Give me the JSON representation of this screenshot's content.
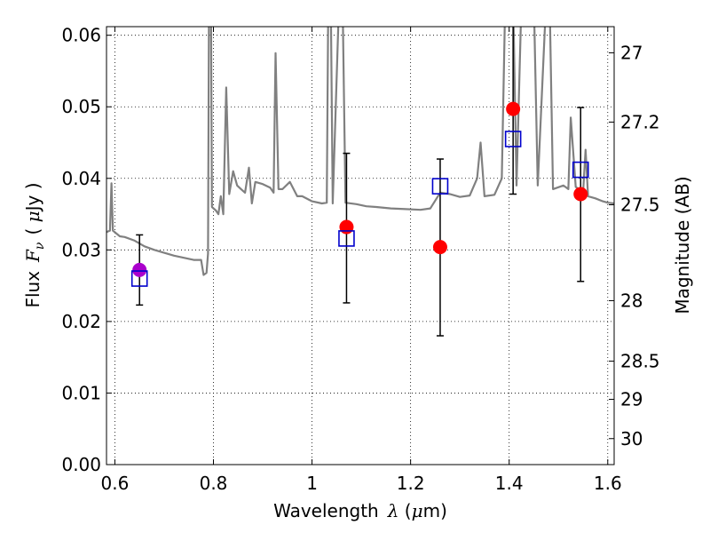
{
  "chart_data": {
    "type": "scatter",
    "xlabel_prefix": "Wavelength",
    "xlabel_symbol": "λ",
    "xlabel_unit_open": " (",
    "xlabel_unit_mu": "μ",
    "xlabel_unit_rest": "m)",
    "ylabel_prefix": "Flux",
    "ylabel_symbol": "F",
    "ylabel_sub": "ν",
    "ylabel_unit_open": "( ",
    "ylabel_unit_mu": "μ",
    "ylabel_unit_rest": "Jy )",
    "y2label": "Magnitude (AB)",
    "xlim": [
      0.583,
      1.613
    ],
    "ylim": [
      0.0,
      0.0612
    ],
    "x_ticks": [
      0.6,
      0.8,
      1.0,
      1.2,
      1.4,
      1.6
    ],
    "x_tick_labels": [
      "0.6",
      "0.8",
      "1",
      "1.2",
      "1.4",
      "1.6"
    ],
    "y_ticks": [
      0.0,
      0.01,
      0.02,
      0.03,
      0.04,
      0.05,
      0.06
    ],
    "y_tick_labels": [
      "0.00",
      "0.01",
      "0.02",
      "0.03",
      "0.04",
      "0.05",
      "0.06"
    ],
    "mag_ticks": [
      {
        "mag": 27,
        "label": "27"
      },
      {
        "mag": 27.2,
        "label": "27.2"
      },
      {
        "mag": 27.5,
        "label": "27.5"
      },
      {
        "mag": 28,
        "label": "28"
      },
      {
        "mag": 28.5,
        "label": "28.5"
      },
      {
        "mag": 29,
        "label": "29"
      },
      {
        "mag": 30,
        "label": "30"
      }
    ],
    "grid": true,
    "template_spectrum": [
      [
        0.583,
        0.0325
      ],
      [
        0.59,
        0.0327
      ],
      [
        0.593,
        0.0393
      ],
      [
        0.596,
        0.0327
      ],
      [
        0.61,
        0.0319
      ],
      [
        0.62,
        0.0318
      ],
      [
        0.64,
        0.0313
      ],
      [
        0.66,
        0.0305
      ],
      [
        0.68,
        0.03
      ],
      [
        0.7,
        0.0296
      ],
      [
        0.72,
        0.0292
      ],
      [
        0.74,
        0.0289
      ],
      [
        0.76,
        0.0286
      ],
      [
        0.775,
        0.0286
      ],
      [
        0.78,
        0.0265
      ],
      [
        0.786,
        0.0268
      ],
      [
        0.789,
        0.0295
      ],
      [
        0.791,
        0.065
      ],
      [
        0.795,
        0.065
      ],
      [
        0.797,
        0.036
      ],
      [
        0.805,
        0.0355
      ],
      [
        0.81,
        0.035
      ],
      [
        0.815,
        0.0375
      ],
      [
        0.82,
        0.035
      ],
      [
        0.826,
        0.0527
      ],
      [
        0.832,
        0.0378
      ],
      [
        0.84,
        0.041
      ],
      [
        0.848,
        0.039
      ],
      [
        0.856,
        0.0385
      ],
      [
        0.864,
        0.038
      ],
      [
        0.872,
        0.0415
      ],
      [
        0.878,
        0.0365
      ],
      [
        0.885,
        0.0395
      ],
      [
        0.9,
        0.0392
      ],
      [
        0.915,
        0.0387
      ],
      [
        0.922,
        0.038
      ],
      [
        0.926,
        0.0575
      ],
      [
        0.932,
        0.0385
      ],
      [
        0.94,
        0.0385
      ],
      [
        0.955,
        0.0395
      ],
      [
        0.97,
        0.0375
      ],
      [
        0.98,
        0.0375
      ],
      [
        1.0,
        0.0368
      ],
      [
        1.02,
        0.0365
      ],
      [
        1.03,
        0.0366
      ],
      [
        1.033,
        0.065
      ],
      [
        1.038,
        0.065
      ],
      [
        1.042,
        0.0365
      ],
      [
        1.055,
        0.065
      ],
      [
        1.062,
        0.065
      ],
      [
        1.068,
        0.0366
      ],
      [
        1.09,
        0.0364
      ],
      [
        1.11,
        0.0361
      ],
      [
        1.13,
        0.036
      ],
      [
        1.16,
        0.0358
      ],
      [
        1.19,
        0.0357
      ],
      [
        1.22,
        0.0356
      ],
      [
        1.24,
        0.0358
      ],
      [
        1.26,
        0.038
      ],
      [
        1.28,
        0.0378
      ],
      [
        1.3,
        0.0374
      ],
      [
        1.32,
        0.0376
      ],
      [
        1.335,
        0.04
      ],
      [
        1.342,
        0.045
      ],
      [
        1.35,
        0.0375
      ],
      [
        1.37,
        0.0377
      ],
      [
        1.385,
        0.04
      ],
      [
        1.392,
        0.065
      ],
      [
        1.408,
        0.065
      ],
      [
        1.415,
        0.039
      ],
      [
        1.425,
        0.065
      ],
      [
        1.45,
        0.065
      ],
      [
        1.458,
        0.039
      ],
      [
        1.475,
        0.065
      ],
      [
        1.482,
        0.065
      ],
      [
        1.489,
        0.0385
      ],
      [
        1.51,
        0.039
      ],
      [
        1.52,
        0.0385
      ],
      [
        1.525,
        0.0485
      ],
      [
        1.535,
        0.0388
      ],
      [
        1.55,
        0.038
      ],
      [
        1.555,
        0.044
      ],
      [
        1.56,
        0.0375
      ],
      [
        1.575,
        0.0372
      ],
      [
        1.59,
        0.0368
      ],
      [
        1.6,
        0.0366
      ],
      [
        1.613,
        0.0365
      ]
    ],
    "model_points": [
      {
        "x": 0.65,
        "y": 0.026
      },
      {
        "x": 1.07,
        "y": 0.0316
      },
      {
        "x": 1.26,
        "y": 0.0389
      },
      {
        "x": 1.408,
        "y": 0.0455
      },
      {
        "x": 1.545,
        "y": 0.0412
      }
    ],
    "observed_points": [
      {
        "x": 0.65,
        "y": 0.0272,
        "lo": 0.0223,
        "hi": 0.0321,
        "color": "#aa00cc"
      },
      {
        "x": 1.07,
        "y": 0.0332,
        "lo": 0.0226,
        "hi": 0.0435,
        "color": "#ff0000"
      },
      {
        "x": 1.26,
        "y": 0.0304,
        "lo": 0.018,
        "hi": 0.0427,
        "color": "#ff0000"
      },
      {
        "x": 1.408,
        "y": 0.0497,
        "lo": 0.0378,
        "hi": 0.062,
        "color": "#ff0000"
      },
      {
        "x": 1.545,
        "y": 0.0378,
        "lo": 0.0256,
        "hi": 0.0499,
        "color": "#ff0000"
      }
    ],
    "colors": {
      "spectrum": "#808080",
      "model": "#0000cc",
      "errorbar": "#000000",
      "grid": "#000000"
    }
  }
}
